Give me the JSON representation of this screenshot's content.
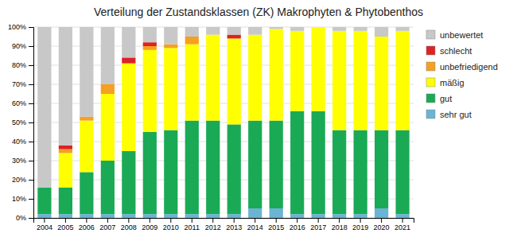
{
  "chart_data": {
    "type": "bar",
    "title": "Verteilung der Zustandsklassen (ZK) Makrophyten & Phytobenthos",
    "categories": [
      "2004",
      "2005",
      "2006",
      "2007",
      "2008",
      "2009",
      "2010",
      "2011",
      "2012",
      "2013",
      "2014",
      "2015",
      "2016",
      "2017",
      "2018",
      "2019",
      "2020",
      "2021"
    ],
    "series": [
      {
        "name": "sehr gut",
        "color": "#6ab4d4",
        "values": [
          2,
          2,
          2,
          2,
          2,
          2,
          2,
          2,
          2,
          2,
          5,
          5,
          2,
          2,
          2,
          2,
          5,
          2
        ]
      },
      {
        "name": "gut",
        "color": "#1aaa55",
        "values": [
          14,
          14,
          22,
          28,
          33,
          43,
          44,
          49,
          49,
          47,
          46,
          46,
          54,
          54,
          44,
          44,
          41,
          44
        ]
      },
      {
        "name": "mäßig",
        "color": "#ffff00",
        "values": [
          0,
          18,
          27,
          35,
          46,
          43,
          43,
          40,
          45,
          45,
          45,
          48,
          42,
          44,
          52,
          52,
          49,
          52
        ]
      },
      {
        "name": "unbefriedigend",
        "color": "#f5a020",
        "values": [
          0,
          2,
          2,
          5,
          0,
          2,
          2,
          4,
          0,
          0,
          0,
          0,
          0,
          0,
          0,
          0,
          0,
          0
        ]
      },
      {
        "name": "schlecht",
        "color": "#dd2222",
        "values": [
          0,
          2,
          0,
          0,
          3,
          2,
          0,
          0,
          0,
          2,
          0,
          0,
          0,
          0,
          0,
          0,
          0,
          0
        ]
      },
      {
        "name": "unbewertet",
        "color": "#c8c8c8",
        "values": [
          84,
          62,
          47,
          30,
          16,
          8,
          9,
          5,
          4,
          4,
          4,
          1,
          2,
          0,
          2,
          2,
          5,
          2
        ]
      }
    ],
    "stacked": true,
    "ylim": [
      0,
      100
    ],
    "yticks": [
      {
        "value": 0,
        "label": "0%"
      },
      {
        "value": 10,
        "label": "10%"
      },
      {
        "value": 20,
        "label": "20%"
      },
      {
        "value": 30,
        "label": "30%"
      },
      {
        "value": 40,
        "label": "40%"
      },
      {
        "value": 50,
        "label": "50%"
      },
      {
        "value": 60,
        "label": "60%"
      },
      {
        "value": 70,
        "label": "70%"
      },
      {
        "value": 80,
        "label": "80%"
      },
      {
        "value": 90,
        "label": "90%"
      },
      {
        "value": 100,
        "label": "100%"
      }
    ],
    "grid": true,
    "legend": "right"
  }
}
